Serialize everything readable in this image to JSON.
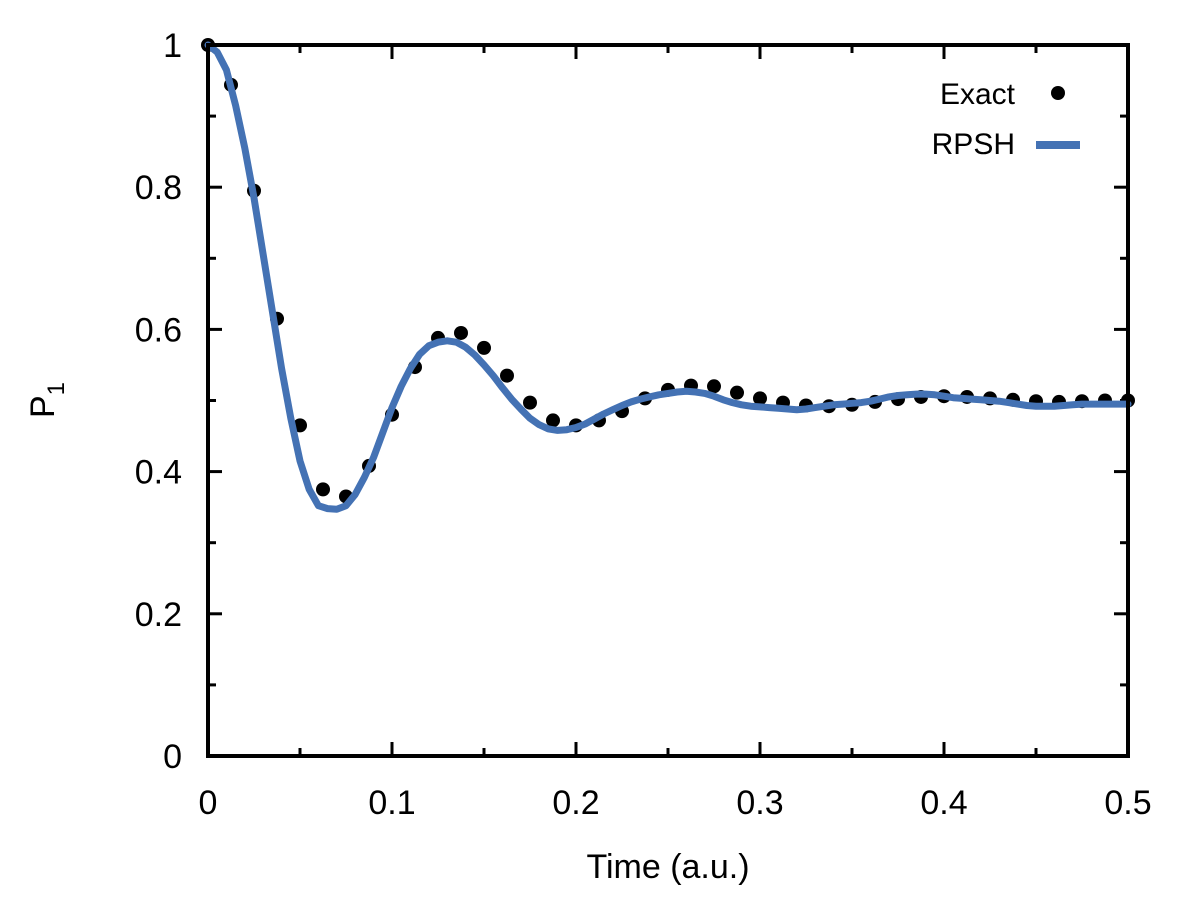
{
  "chart_data": {
    "type": "line",
    "xlabel": "Time (a.u.)",
    "ylabel_main": "P",
    "ylabel_sub": "1",
    "xlim": [
      0,
      0.5
    ],
    "ylim": [
      0,
      1
    ],
    "x_ticks": [
      "0",
      "0.1",
      "0.2",
      "0.3",
      "0.4",
      "0.5"
    ],
    "y_ticks": [
      "0",
      "0.2",
      "0.4",
      "0.6",
      "0.8",
      "1"
    ],
    "legend_position": "top-right",
    "series": [
      {
        "name": "Exact",
        "style": "points",
        "color": "#000000",
        "x": [
          0,
          0.0125,
          0.025,
          0.0375,
          0.05,
          0.0625,
          0.075,
          0.0875,
          0.1,
          0.1125,
          0.125,
          0.1375,
          0.15,
          0.1625,
          0.175,
          0.1875,
          0.2,
          0.2125,
          0.225,
          0.2375,
          0.25,
          0.2625,
          0.275,
          0.2875,
          0.3,
          0.3125,
          0.325,
          0.3375,
          0.35,
          0.3625,
          0.375,
          0.3875,
          0.4,
          0.4125,
          0.425,
          0.4375,
          0.45,
          0.4625,
          0.475,
          0.4875,
          0.5
        ],
        "y": [
          1.0,
          0.944,
          0.795,
          0.615,
          0.465,
          0.375,
          0.365,
          0.408,
          0.48,
          0.547,
          0.588,
          0.595,
          0.574,
          0.535,
          0.497,
          0.472,
          0.465,
          0.472,
          0.485,
          0.503,
          0.515,
          0.521,
          0.52,
          0.511,
          0.503,
          0.497,
          0.493,
          0.492,
          0.494,
          0.498,
          0.502,
          0.505,
          0.506,
          0.505,
          0.503,
          0.501,
          0.499,
          0.498,
          0.499,
          0.5,
          0.5
        ]
      },
      {
        "name": "RPSH",
        "style": "line",
        "color": "#4472b4",
        "x": [
          0,
          0.005,
          0.01,
          0.015,
          0.02,
          0.025,
          0.03,
          0.035,
          0.04,
          0.045,
          0.05,
          0.055,
          0.06,
          0.065,
          0.07,
          0.075,
          0.08,
          0.085,
          0.09,
          0.095,
          0.1,
          0.105,
          0.11,
          0.115,
          0.12,
          0.125,
          0.13,
          0.135,
          0.14,
          0.145,
          0.15,
          0.155,
          0.16,
          0.165,
          0.17,
          0.175,
          0.18,
          0.185,
          0.19,
          0.195,
          0.2,
          0.205,
          0.21,
          0.215,
          0.22,
          0.225,
          0.23,
          0.235,
          0.24,
          0.245,
          0.25,
          0.255,
          0.26,
          0.265,
          0.27,
          0.275,
          0.28,
          0.285,
          0.29,
          0.295,
          0.3,
          0.305,
          0.31,
          0.315,
          0.32,
          0.325,
          0.33,
          0.335,
          0.34,
          0.345,
          0.35,
          0.355,
          0.36,
          0.365,
          0.37,
          0.375,
          0.38,
          0.385,
          0.39,
          0.395,
          0.4,
          0.405,
          0.41,
          0.415,
          0.42,
          0.425,
          0.43,
          0.435,
          0.44,
          0.445,
          0.45,
          0.455,
          0.46,
          0.465,
          0.47,
          0.475,
          0.48,
          0.485,
          0.49,
          0.495,
          0.5
        ],
        "y": [
          1.0,
          0.99,
          0.965,
          0.915,
          0.855,
          0.785,
          0.705,
          0.625,
          0.545,
          0.475,
          0.415,
          0.375,
          0.352,
          0.348,
          0.347,
          0.352,
          0.368,
          0.392,
          0.42,
          0.455,
          0.49,
          0.52,
          0.545,
          0.565,
          0.577,
          0.582,
          0.584,
          0.582,
          0.575,
          0.564,
          0.55,
          0.535,
          0.518,
          0.502,
          0.488,
          0.475,
          0.466,
          0.46,
          0.458,
          0.459,
          0.462,
          0.467,
          0.474,
          0.481,
          0.487,
          0.493,
          0.498,
          0.502,
          0.505,
          0.508,
          0.51,
          0.512,
          0.513,
          0.512,
          0.51,
          0.506,
          0.501,
          0.497,
          0.494,
          0.492,
          0.491,
          0.49,
          0.489,
          0.488,
          0.487,
          0.488,
          0.49,
          0.492,
          0.494,
          0.495,
          0.496,
          0.497,
          0.499,
          0.502,
          0.505,
          0.507,
          0.508,
          0.509,
          0.509,
          0.508,
          0.506,
          0.504,
          0.503,
          0.502,
          0.501,
          0.5,
          0.499,
          0.497,
          0.495,
          0.493,
          0.492,
          0.492,
          0.492,
          0.493,
          0.494,
          0.495,
          0.495,
          0.495,
          0.495,
          0.495,
          0.495
        ]
      }
    ]
  }
}
